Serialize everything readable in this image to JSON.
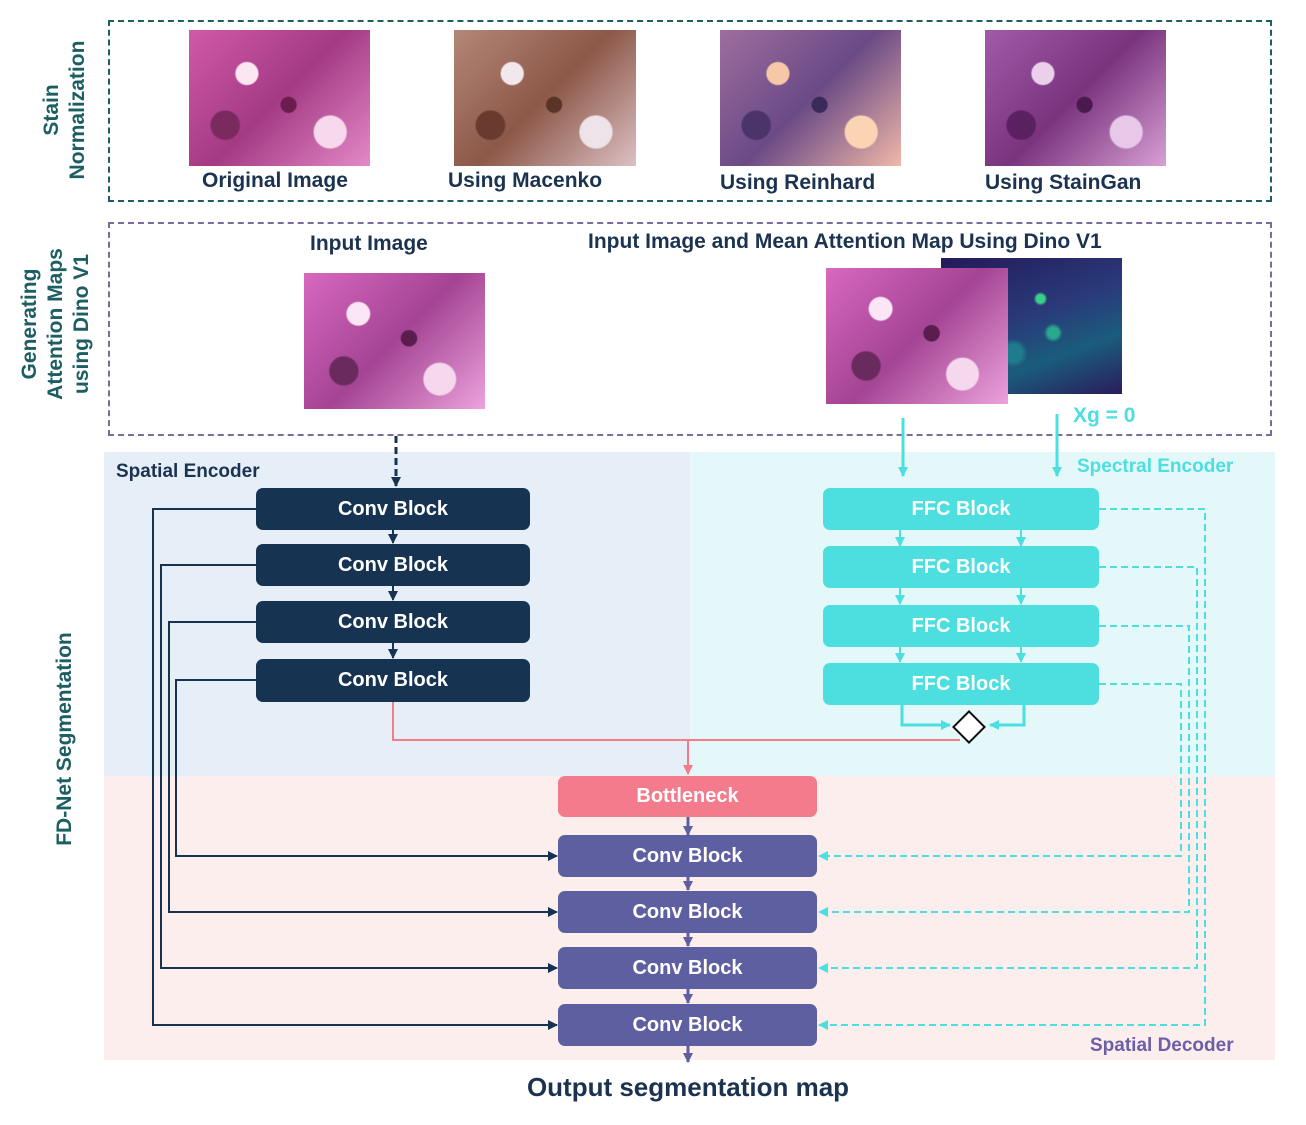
{
  "stain_normalization": {
    "label": "Stain\nNormalization",
    "images": [
      {
        "caption": "Original Image"
      },
      {
        "caption": "Using Macenko"
      },
      {
        "caption": "Using Reinhard"
      },
      {
        "caption": "Using StainGan"
      }
    ]
  },
  "attention": {
    "label": "Generating\nAttention Maps\nusing Dino V1",
    "input_caption": "Input Image",
    "pair_caption": "Input Image and  Mean Attention Map Using Dino V1",
    "xg_label": "Xg = 0"
  },
  "fdnet": {
    "label": "FD-Net Segmentation",
    "spatial_encoder_title": "Spatial Encoder",
    "spectral_encoder_title": "Spectral Encoder",
    "spatial_decoder_title": "Spatial Decoder",
    "conv_blocks": [
      "Conv Block",
      "Conv Block",
      "Conv Block",
      "Conv Block"
    ],
    "ffc_blocks": [
      "FFC Block",
      "FFC Block",
      "FFC Block",
      "FFC Block"
    ],
    "bottleneck": "Bottleneck",
    "decoder_blocks": [
      "Conv Block",
      "Conv Block",
      "Conv Block",
      "Conv Block"
    ],
    "output_label": "Output segmentation map"
  },
  "colors": {
    "spatial_encoder_bg": "#e6eff8",
    "spectral_encoder_bg": "#e4f7f9",
    "decoder_bg": "#fdeeee",
    "conv_block": "#163352",
    "ffc_block": "#4ddfdf",
    "decoder_block": "#5e5fa0",
    "bottleneck": "#f47b8b",
    "skip_dashed": "#4ddfdf",
    "stain_border": "#1d5e63",
    "attention_border": "#7a6c9c"
  }
}
